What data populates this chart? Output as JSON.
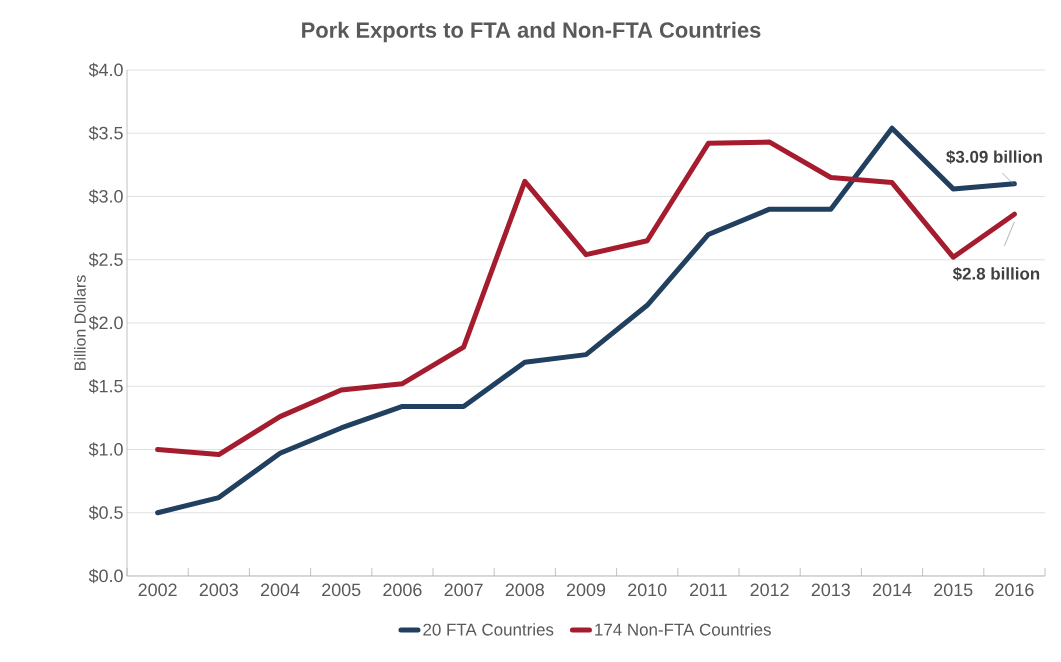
{
  "chart_data": {
    "type": "line",
    "title": "Pork Exports to FTA and Non-FTA Countries",
    "ylabel": "Billion Dollars",
    "categories": [
      "2002",
      "2003",
      "2004",
      "2005",
      "2006",
      "2007",
      "2008",
      "2009",
      "2010",
      "2011",
      "2012",
      "2013",
      "2014",
      "2015",
      "2016"
    ],
    "series": [
      {
        "name": "20 FTA Countries",
        "color": "#213f5f",
        "values": [
          0.5,
          0.62,
          0.97,
          1.17,
          1.34,
          1.34,
          1.69,
          1.75,
          2.14,
          2.7,
          2.9,
          2.9,
          3.54,
          3.06,
          3.1
        ]
      },
      {
        "name": "174 Non-FTA Countries",
        "color": "#a51c2e",
        "values": [
          1.0,
          0.96,
          1.26,
          1.47,
          1.52,
          1.81,
          3.12,
          2.54,
          2.65,
          3.42,
          3.43,
          3.15,
          3.11,
          2.52,
          2.86
        ]
      }
    ],
    "ylim": [
      0,
      4
    ],
    "yticks": [
      {
        "value": 0,
        "label": "$0.0"
      },
      {
        "value": 0.5,
        "label": "$0.5"
      },
      {
        "value": 1,
        "label": "$1.0"
      },
      {
        "value": 1.5,
        "label": "$1.5"
      },
      {
        "value": 2,
        "label": "$2.0"
      },
      {
        "value": 2.5,
        "label": "$2.5"
      },
      {
        "value": 3,
        "label": "$3.0"
      },
      {
        "value": 3.5,
        "label": "$3.5"
      },
      {
        "value": 4,
        "label": "$4.0"
      }
    ],
    "annotations": [
      {
        "text": "$3.09 billion",
        "x": "2016",
        "y": 3.09
      },
      {
        "text": "$2.8 billion",
        "x": "2016",
        "y": 2.8
      }
    ],
    "grid": "y",
    "legend": "bottom",
    "marker": "none",
    "line_style": "solid"
  }
}
